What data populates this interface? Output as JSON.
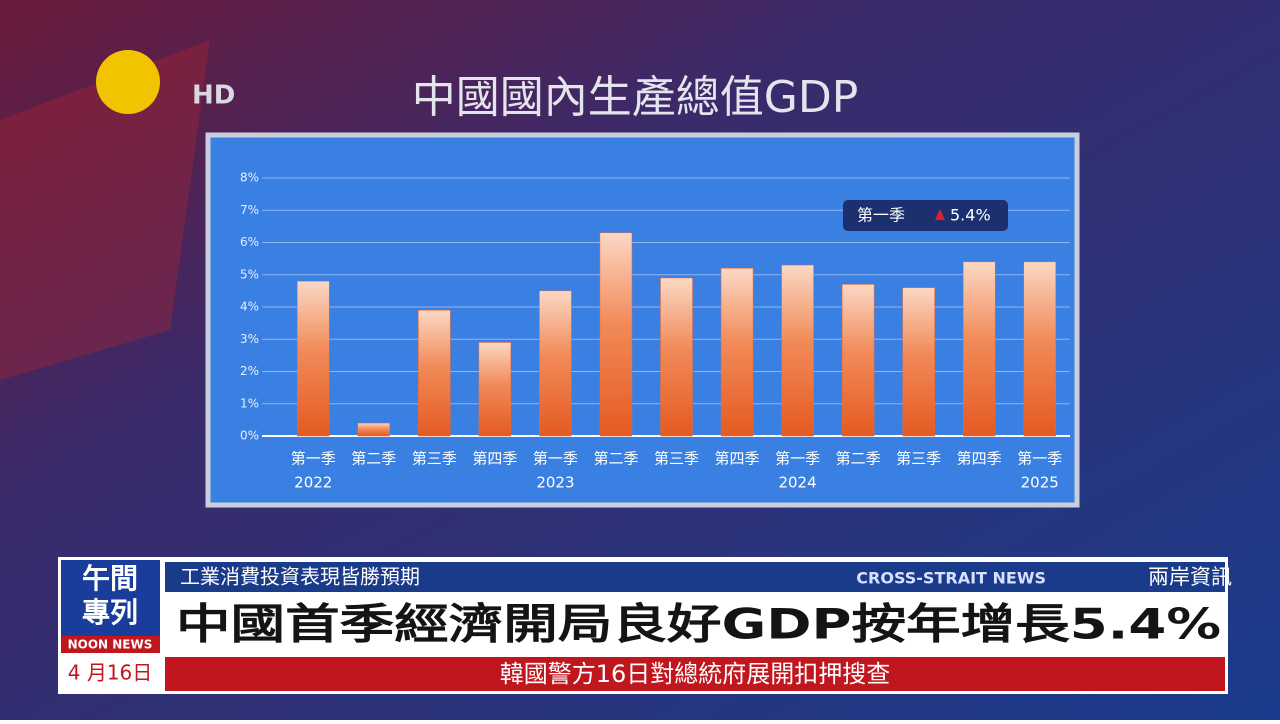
{
  "broadcast": {
    "channel": "HD",
    "program": {
      "line1": "午間",
      "line2": "專列",
      "english": "NOON NEWS",
      "date": "4 月16日"
    },
    "ticker": {
      "kicker": "工業消費投資表現皆勝預期",
      "section_en": "CROSS-STRAIT NEWS",
      "section_zh": "兩岸資訊",
      "headline": "中國首季經濟開局良好GDP按年增長5.4%",
      "crawl": "韓國警方16日對總統府展開扣押搜查"
    }
  },
  "chart_data": {
    "type": "bar",
    "title": "中國國內生產總值GDP",
    "categories": [
      "第一季",
      "第二季",
      "第三季",
      "第四季",
      "第一季",
      "第二季",
      "第三季",
      "第四季",
      "第一季",
      "第二季",
      "第三季",
      "第四季",
      "第一季"
    ],
    "years": [
      "2022",
      null,
      null,
      null,
      "2023",
      null,
      null,
      null,
      "2024",
      null,
      null,
      null,
      "2025"
    ],
    "values": [
      4.8,
      0.4,
      3.9,
      2.9,
      4.5,
      6.3,
      4.9,
      5.2,
      5.3,
      4.7,
      4.6,
      5.4,
      5.4
    ],
    "color": "#ec6a34",
    "ylim": [
      0,
      8
    ],
    "yticks": [
      {
        "value": 0,
        "label": "0%"
      },
      {
        "value": 1,
        "label": "1%"
      },
      {
        "value": 2,
        "label": "2%"
      },
      {
        "value": 3,
        "label": "3%"
      },
      {
        "value": 4,
        "label": "4%"
      },
      {
        "value": 5,
        "label": "5%"
      },
      {
        "value": 6,
        "label": "6%"
      },
      {
        "value": 7,
        "label": "7%"
      },
      {
        "value": 8,
        "label": "8%"
      }
    ],
    "grid": true,
    "annotation": {
      "label": "第一季",
      "text": "5.4%"
    }
  }
}
